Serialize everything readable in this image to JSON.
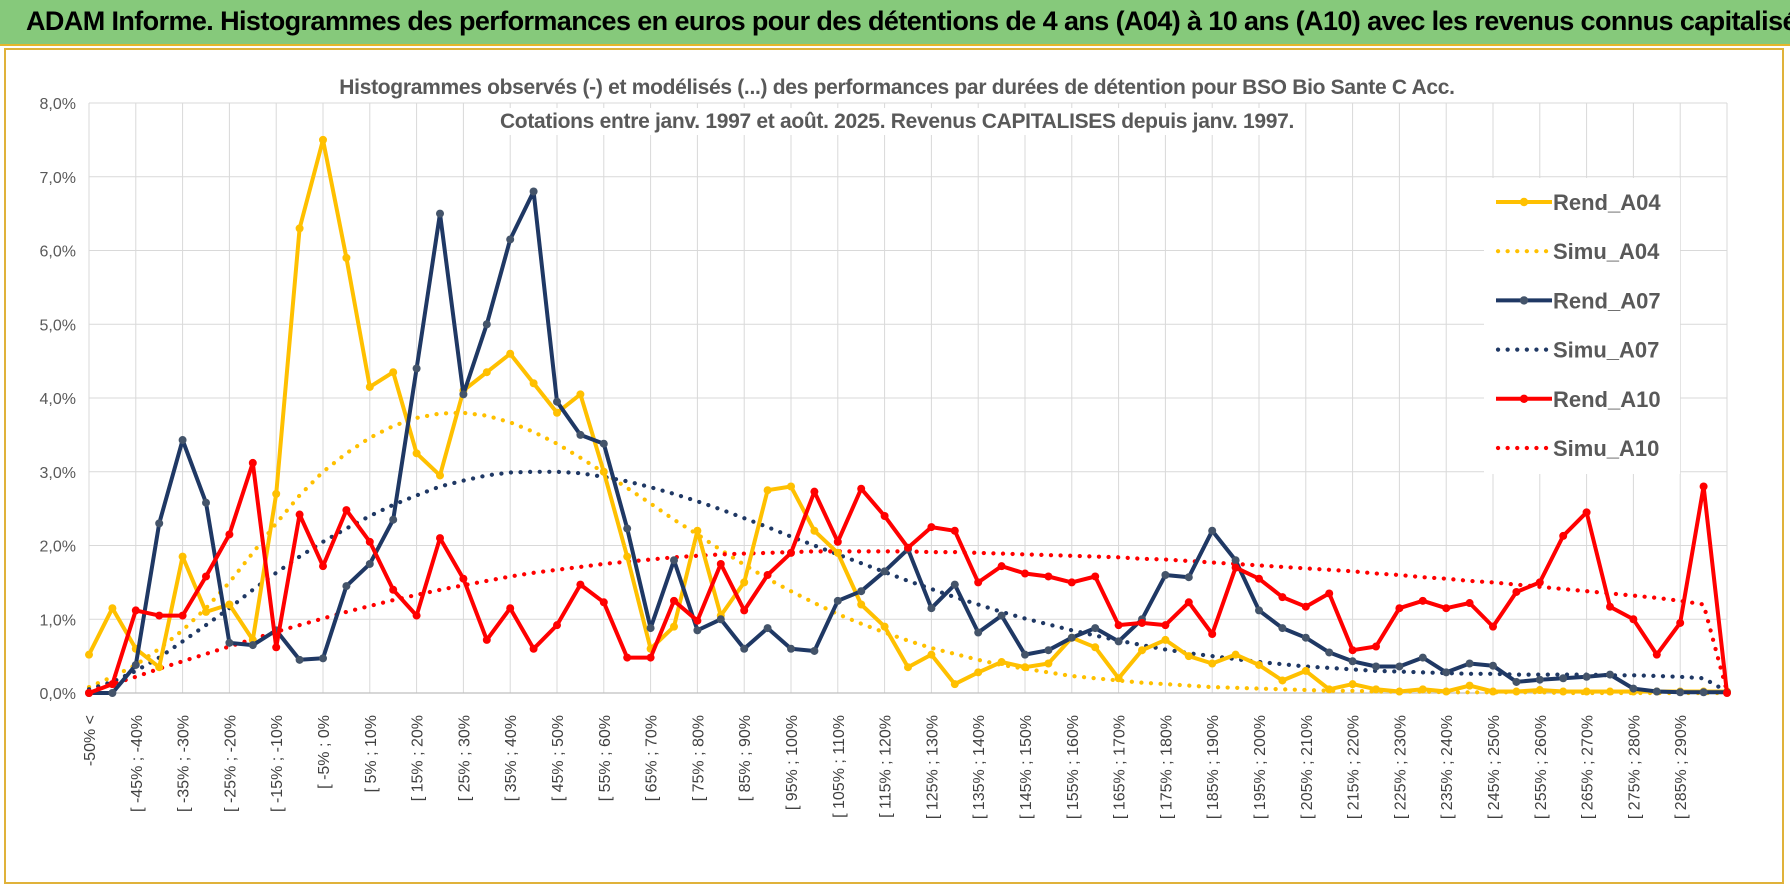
{
  "header": {
    "title": "ADAM Informe. Histogrammes des performances en euros pour des détentions de 4 ans (A04) à 10 ans (A10) avec les revenus connus capitalisés"
  },
  "chart_data": {
    "type": "line",
    "title": "Histogrammes observés (-) et modélisés (...) des performances par durées de détention pour BSO Bio Sante C Acc.",
    "subtitle": "Cotations entre janv. 1997 et août. 2025. Revenus CAPITALISES depuis janv. 1997.",
    "ylim": [
      0,
      8
    ],
    "y_ticks": [
      "0,0%",
      "1,0%",
      "2,0%",
      "3,0%",
      "4,0%",
      "5,0%",
      "6,0%",
      "7,0%",
      "8,0%"
    ],
    "grid": true,
    "legend_position": "right",
    "x_tick_labels": [
      "-50% <",
      "[ -45% ; -40%",
      "[ -35% ; -30%",
      "[ -25% ; -20%",
      "[ -15% ; -10%",
      "[ -5% ; 0%",
      "[ 5% ; 10%",
      "[ 15% ; 20%",
      "[ 25% ; 30%",
      "[ 35% ; 40%",
      "[ 45% ; 50%",
      "[ 55% ; 60%",
      "[ 65% ; 70%",
      "[ 75% ; 80%",
      "[ 85% ; 90%",
      "[ 95% ; 100%",
      "[ 105% ; 110%",
      "[ 115% ; 120%",
      "[ 125% ; 130%",
      "[ 135% ; 140%",
      "[ 145% ; 150%",
      "[ 155% ; 160%",
      "[ 165% ; 170%",
      "[ 175% ; 180%",
      "[ 185% ; 190%",
      "[ 195% ; 200%",
      "[ 205% ; 210%",
      "[ 215% ; 220%",
      "[ 225% ; 230%",
      "[ 235% ; 240%",
      "[ 245% ; 250%",
      "[ 255% ; 260%",
      "[ 265% ; 270%",
      "[ 275% ; 280%",
      "[ 285% ; 290%"
    ],
    "bin_count": 71,
    "series": [
      {
        "name": "Rend_A04",
        "style": "solid",
        "color": "#ffc000",
        "values": [
          0.52,
          1.15,
          0.6,
          0.35,
          1.85,
          1.1,
          1.2,
          0.72,
          2.7,
          6.3,
          7.5,
          5.9,
          4.15,
          4.35,
          3.25,
          2.95,
          4.1,
          4.35,
          4.6,
          4.2,
          3.8,
          4.05,
          3.0,
          1.85,
          0.6,
          0.9,
          2.2,
          1.05,
          1.5,
          2.75,
          2.8,
          2.2,
          1.9,
          1.2,
          0.9,
          0.35,
          0.52,
          0.12,
          0.28,
          0.42,
          0.35,
          0.4,
          0.75,
          0.62,
          0.2,
          0.58,
          0.72,
          0.5,
          0.4,
          0.52,
          0.38,
          0.17,
          0.3,
          0.05,
          0.12,
          0.05,
          0.02,
          0.05,
          0.02,
          0.1,
          0.02,
          0.02,
          0.04,
          0.02,
          0.02,
          0.02,
          0.02,
          0.02,
          0.02,
          0.02,
          0.02
        ]
      },
      {
        "name": "Simu_A04",
        "style": "dotted",
        "color": "#ffc000",
        "values": [
          0.08,
          0.22,
          0.38,
          0.6,
          0.85,
          1.15,
          1.5,
          1.9,
          2.3,
          2.68,
          3.0,
          3.25,
          3.46,
          3.62,
          3.73,
          3.79,
          3.8,
          3.76,
          3.67,
          3.54,
          3.38,
          3.19,
          2.99,
          2.78,
          2.57,
          2.35,
          2.15,
          1.94,
          1.74,
          1.55,
          1.38,
          1.22,
          1.07,
          0.94,
          0.82,
          0.71,
          0.61,
          0.53,
          0.45,
          0.38,
          0.33,
          0.28,
          0.23,
          0.2,
          0.17,
          0.14,
          0.12,
          0.1,
          0.08,
          0.07,
          0.06,
          0.05,
          0.04,
          0.03,
          0.03,
          0.02,
          0.02,
          0.02,
          0.01,
          0.01,
          0.01,
          0.01,
          0.01,
          0.0,
          0.0,
          0.0,
          0.0,
          0.0,
          0.0,
          0.0,
          0.0
        ]
      },
      {
        "name": "Rend_A07",
        "style": "solid",
        "color": "#1f3864",
        "values": [
          0.0,
          0.0,
          0.38,
          2.3,
          3.43,
          2.58,
          0.68,
          0.65,
          0.85,
          0.45,
          0.47,
          1.45,
          1.75,
          2.35,
          4.4,
          6.5,
          4.05,
          5.0,
          6.15,
          6.8,
          3.95,
          3.5,
          3.38,
          2.23,
          0.88,
          1.8,
          0.85,
          1.0,
          0.6,
          0.88,
          0.6,
          0.57,
          1.25,
          1.38,
          1.65,
          1.95,
          1.15,
          1.47,
          0.82,
          1.05,
          0.52,
          0.58,
          0.75,
          0.88,
          0.7,
          1.0,
          1.6,
          1.57,
          2.2,
          1.8,
          1.12,
          0.88,
          0.75,
          0.55,
          0.43,
          0.36,
          0.36,
          0.48,
          0.28,
          0.4,
          0.37,
          0.15,
          0.18,
          0.2,
          0.22,
          0.25,
          0.06,
          0.02,
          0.01,
          0.01,
          0.01
        ]
      },
      {
        "name": "Simu_A07",
        "style": "dotted",
        "color": "#1f3864",
        "values": [
          0.05,
          0.15,
          0.3,
          0.48,
          0.7,
          0.92,
          1.15,
          1.4,
          1.63,
          1.85,
          2.05,
          2.23,
          2.4,
          2.55,
          2.68,
          2.8,
          2.88,
          2.95,
          2.99,
          3.0,
          3.0,
          2.98,
          2.93,
          2.87,
          2.79,
          2.7,
          2.6,
          2.49,
          2.37,
          2.25,
          2.12,
          2.0,
          1.88,
          1.76,
          1.64,
          1.52,
          1.41,
          1.3,
          1.2,
          1.1,
          1.01,
          0.93,
          0.85,
          0.78,
          0.71,
          0.65,
          0.59,
          0.54,
          0.5,
          0.46,
          0.42,
          0.39,
          0.36,
          0.34,
          0.32,
          0.3,
          0.29,
          0.28,
          0.27,
          0.26,
          0.26,
          0.25,
          0.25,
          0.25,
          0.25,
          0.24,
          0.24,
          0.23,
          0.22,
          0.2,
          0.02
        ]
      },
      {
        "name": "Rend_A10",
        "style": "solid",
        "color": "#ff0000",
        "values": [
          0.0,
          0.12,
          1.12,
          1.05,
          1.05,
          1.58,
          2.15,
          3.12,
          0.62,
          2.42,
          1.72,
          2.48,
          2.05,
          1.4,
          1.05,
          2.1,
          1.55,
          0.72,
          1.15,
          0.6,
          0.92,
          1.47,
          1.23,
          0.48,
          0.48,
          1.25,
          0.98,
          1.75,
          1.12,
          1.6,
          1.9,
          2.73,
          2.05,
          2.77,
          2.4,
          1.97,
          2.25,
          2.2,
          1.5,
          1.72,
          1.62,
          1.58,
          1.5,
          1.58,
          0.92,
          0.95,
          0.92,
          1.23,
          0.8,
          1.7,
          1.55,
          1.3,
          1.17,
          1.35,
          0.58,
          0.63,
          1.15,
          1.25,
          1.15,
          1.22,
          0.9,
          1.37,
          1.5,
          2.13,
          2.45,
          1.17,
          1.0,
          0.52,
          0.95,
          2.8,
          0.0
        ]
      },
      {
        "name": "Simu_A10",
        "style": "dotted",
        "color": "#ff0000",
        "values": [
          0.02,
          0.12,
          0.22,
          0.33,
          0.43,
          0.53,
          0.63,
          0.73,
          0.83,
          0.92,
          1.01,
          1.1,
          1.18,
          1.26,
          1.33,
          1.4,
          1.46,
          1.52,
          1.58,
          1.63,
          1.67,
          1.71,
          1.75,
          1.78,
          1.81,
          1.84,
          1.86,
          1.88,
          1.89,
          1.9,
          1.91,
          1.92,
          1.92,
          1.92,
          1.92,
          1.92,
          1.91,
          1.91,
          1.9,
          1.89,
          1.88,
          1.87,
          1.86,
          1.85,
          1.84,
          1.82,
          1.81,
          1.79,
          1.77,
          1.75,
          1.73,
          1.71,
          1.69,
          1.67,
          1.65,
          1.62,
          1.6,
          1.57,
          1.55,
          1.52,
          1.5,
          1.47,
          1.44,
          1.41,
          1.38,
          1.35,
          1.32,
          1.29,
          1.25,
          1.2,
          0.02
        ]
      }
    ]
  }
}
